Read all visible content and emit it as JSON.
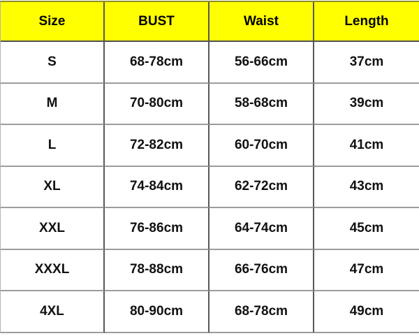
{
  "chart_data": {
    "type": "table",
    "columns": [
      "Size",
      "BUST",
      "Waist",
      "Length"
    ],
    "rows": [
      [
        "S",
        "68-78cm",
        "56-66cm",
        "37cm"
      ],
      [
        "M",
        "70-80cm",
        "58-68cm",
        "39cm"
      ],
      [
        "L",
        "72-82cm",
        "60-70cm",
        "41cm"
      ],
      [
        "XL",
        "74-84cm",
        "62-72cm",
        "43cm"
      ],
      [
        "XXL",
        "76-86cm",
        "64-74cm",
        "45cm"
      ],
      [
        "XXXL",
        "78-88cm",
        "66-76cm",
        "47cm"
      ],
      [
        "4XL",
        "80-90cm",
        "68-78cm",
        "49cm"
      ]
    ],
    "unit": "cm",
    "layout_hints": {
      "header_background": "yellow",
      "grid": "on",
      "text_alignment": "center"
    }
  },
  "colors": {
    "header_bg": "#ffff00",
    "header_text": "#000000",
    "cell_text": "#111111",
    "grid_vertical": "#58585a",
    "grid_horizontal": "#9c9c9c",
    "header_divider": "#4f4f51",
    "top_border": "#8e8e2a",
    "outer_edge": "#b3b3b3"
  }
}
